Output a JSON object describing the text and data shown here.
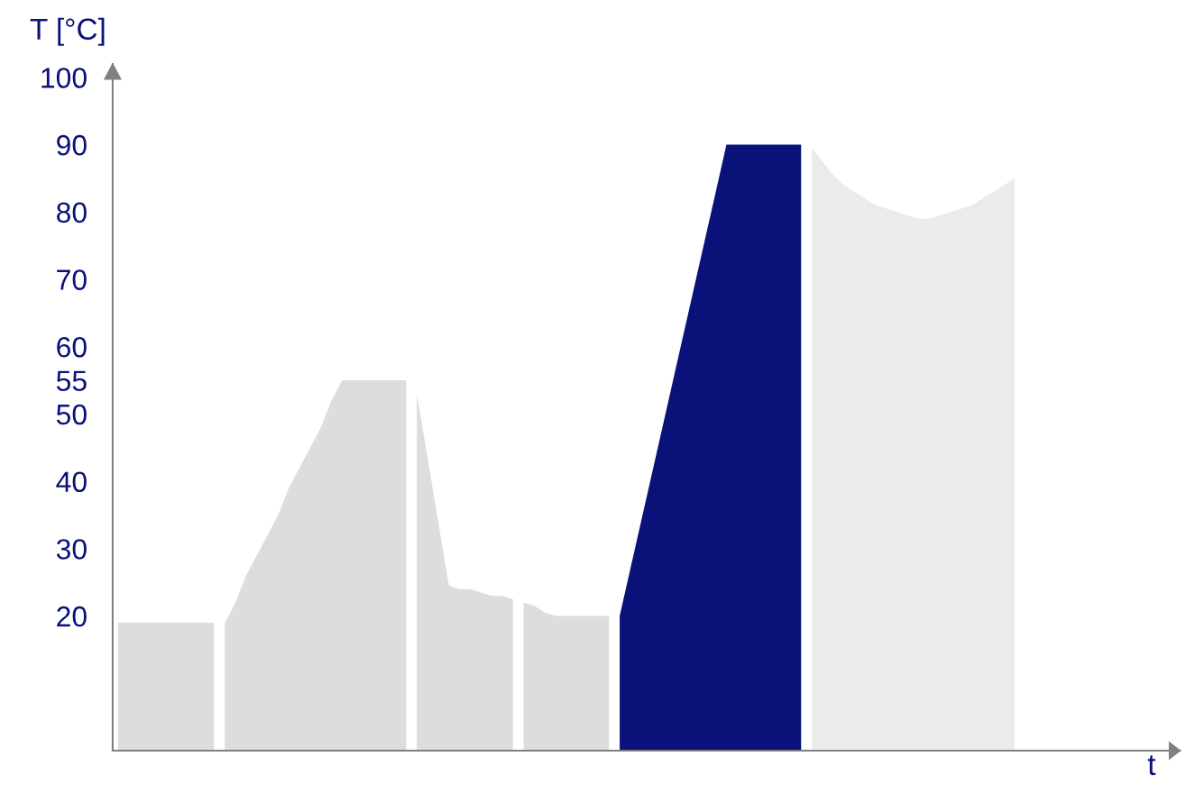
{
  "chart_data": {
    "type": "area",
    "xlabel": "t",
    "ylabel": "T [°C]",
    "categories": [
      null,
      null,
      null,
      null,
      null,
      null,
      null,
      null,
      null,
      null,
      null,
      null,
      null,
      null,
      null,
      null,
      null,
      null,
      null,
      null,
      null,
      null,
      null,
      null,
      null,
      null,
      null,
      null,
      null,
      null,
      null,
      null,
      null,
      null,
      null,
      null,
      null,
      null,
      null,
      null,
      null,
      null,
      null,
      null,
      null,
      null,
      null,
      null,
      null,
      null,
      null,
      null,
      null,
      null,
      null,
      null,
      null,
      null,
      null,
      null,
      null,
      null,
      null,
      null,
      null,
      null,
      null,
      null,
      null,
      null,
      null,
      null,
      null,
      null,
      null,
      null,
      null,
      null,
      null,
      null,
      null,
      null,
      null,
      null,
      null,
      null,
      null,
      null,
      null,
      null,
      null,
      null,
      null,
      null,
      null,
      null,
      null,
      null,
      null,
      null
    ],
    "ylim": [
      0,
      102
    ],
    "yticks": [
      20,
      30,
      40,
      50,
      55,
      60,
      70,
      80,
      90,
      100
    ],
    "tick_labels": "y",
    "series": [
      {
        "color": "#dddddd",
        "values": [
          19,
          19,
          19,
          19,
          19,
          19,
          19,
          19,
          19,
          19,
          null,
          null,
          null,
          null,
          null,
          null,
          null,
          null,
          null,
          null,
          null,
          null,
          null,
          null,
          null,
          null,
          null,
          null,
          null,
          null,
          null,
          null,
          null,
          null,
          null,
          null,
          null,
          null,
          null,
          null,
          null,
          null,
          null,
          null,
          null,
          null,
          null,
          null,
          null,
          null,
          null,
          null,
          null,
          null,
          null,
          null,
          null,
          null,
          null,
          null,
          null,
          null,
          null,
          null,
          null,
          null,
          null,
          null,
          null,
          null,
          null,
          null,
          null,
          null,
          null,
          null,
          null,
          null,
          null,
          null,
          null,
          null,
          null,
          null,
          null,
          null,
          null,
          null,
          null,
          null,
          null,
          null,
          null,
          null,
          null,
          null,
          null,
          null,
          null,
          null
        ]
      },
      {
        "color": "#dddddd",
        "values": [
          null,
          null,
          null,
          null,
          null,
          null,
          null,
          null,
          null,
          null,
          19,
          22,
          26,
          29,
          32,
          35,
          39,
          42,
          45,
          48,
          52,
          55,
          55,
          55,
          55,
          55,
          55,
          55,
          null,
          null,
          null,
          null,
          null,
          null,
          null,
          null,
          null,
          null,
          null,
          null,
          null,
          null,
          null,
          null,
          null,
          null,
          null,
          null,
          null,
          null,
          null,
          null,
          null,
          null,
          null,
          null,
          null,
          null,
          null,
          null,
          null,
          null,
          null,
          null,
          null,
          null,
          null,
          null,
          null,
          null,
          null,
          null,
          null,
          null,
          null,
          null,
          null,
          null,
          null,
          null,
          null,
          null,
          null,
          null,
          null,
          null,
          null,
          null,
          null,
          null,
          null,
          null,
          null,
          null,
          null,
          null,
          null,
          null,
          null,
          null
        ]
      },
      {
        "color": "#dddddd",
        "values": [
          null,
          null,
          null,
          null,
          null,
          null,
          null,
          null,
          null,
          null,
          null,
          null,
          null,
          null,
          null,
          null,
          null,
          null,
          null,
          null,
          null,
          null,
          null,
          null,
          null,
          null,
          null,
          null,
          53,
          43.5,
          34,
          24.5,
          24,
          24,
          23.5,
          23,
          23,
          22.5,
          null,
          null,
          null,
          null,
          null,
          null,
          null,
          null,
          null,
          null,
          null,
          null,
          null,
          null,
          null,
          null,
          null,
          null,
          null,
          null,
          null,
          null,
          null,
          null,
          null,
          null,
          null,
          null,
          null,
          null,
          null,
          null,
          null,
          null,
          null,
          null,
          null,
          null,
          null,
          null,
          null,
          null,
          null,
          null,
          null,
          null,
          null,
          null,
          null,
          null,
          null,
          null,
          null,
          null,
          null,
          null,
          null,
          null,
          null,
          null,
          null,
          null
        ]
      },
      {
        "color": "#dddddd",
        "values": [
          null,
          null,
          null,
          null,
          null,
          null,
          null,
          null,
          null,
          null,
          null,
          null,
          null,
          null,
          null,
          null,
          null,
          null,
          null,
          null,
          null,
          null,
          null,
          null,
          null,
          null,
          null,
          null,
          null,
          null,
          null,
          null,
          null,
          null,
          null,
          null,
          null,
          null,
          22,
          21.5,
          20.5,
          20,
          20,
          20,
          20,
          20,
          20,
          null,
          null,
          null,
          null,
          null,
          null,
          null,
          null,
          null,
          null,
          null,
          null,
          null,
          null,
          null,
          null,
          null,
          null,
          null,
          null,
          null,
          null,
          null,
          null,
          null,
          null,
          null,
          null,
          null,
          null,
          null,
          null,
          null,
          null,
          null,
          null,
          null,
          null,
          null,
          null,
          null,
          null,
          null,
          null,
          null,
          null,
          null,
          null,
          null,
          null,
          null,
          null,
          null
        ]
      },
      {
        "color": "#0a127a",
        "values": [
          null,
          null,
          null,
          null,
          null,
          null,
          null,
          null,
          null,
          null,
          null,
          null,
          null,
          null,
          null,
          null,
          null,
          null,
          null,
          null,
          null,
          null,
          null,
          null,
          null,
          null,
          null,
          null,
          null,
          null,
          null,
          null,
          null,
          null,
          null,
          null,
          null,
          null,
          null,
          null,
          null,
          null,
          null,
          null,
          null,
          null,
          null,
          20,
          27,
          34,
          41,
          48,
          55,
          62,
          69,
          76,
          83,
          90,
          90,
          90,
          90,
          90,
          90,
          90,
          90,
          null,
          null,
          null,
          null,
          null,
          null,
          null,
          null,
          null,
          null,
          null,
          null,
          null,
          null,
          null,
          null,
          null,
          null,
          null,
          null,
          null,
          null,
          null,
          null,
          null,
          null,
          null,
          null,
          null,
          null,
          null,
          null,
          null,
          null,
          null
        ]
      },
      {
        "color": "#ebebeb",
        "values": [
          null,
          null,
          null,
          null,
          null,
          null,
          null,
          null,
          null,
          null,
          null,
          null,
          null,
          null,
          null,
          null,
          null,
          null,
          null,
          null,
          null,
          null,
          null,
          null,
          null,
          null,
          null,
          null,
          null,
          null,
          null,
          null,
          null,
          null,
          null,
          null,
          null,
          null,
          null,
          null,
          null,
          null,
          null,
          null,
          null,
          null,
          null,
          null,
          null,
          null,
          null,
          null,
          null,
          null,
          null,
          null,
          null,
          null,
          null,
          null,
          null,
          null,
          null,
          null,
          null,
          89.5,
          87.5,
          85.5,
          84,
          83,
          82,
          81,
          80.5,
          80,
          79.5,
          79,
          79,
          79.5,
          80,
          80.5,
          81,
          82,
          83,
          84,
          85,
          null,
          null,
          null,
          null,
          null,
          null,
          null,
          null,
          null,
          null,
          null,
          null,
          null,
          null,
          null
        ]
      }
    ]
  }
}
